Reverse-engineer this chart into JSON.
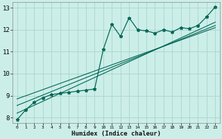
{
  "title": "",
  "xlabel": "Humidex (Indice chaleur)",
  "xlim": [
    -0.5,
    23.5
  ],
  "ylim": [
    7.75,
    13.25
  ],
  "yticks": [
    8,
    9,
    10,
    11,
    12,
    13
  ],
  "xticks": [
    0,
    1,
    2,
    3,
    4,
    5,
    6,
    7,
    8,
    9,
    10,
    11,
    12,
    13,
    14,
    15,
    16,
    17,
    18,
    19,
    20,
    21,
    22,
    23
  ],
  "bg_color": "#cceee8",
  "grid_color": "#aad8d0",
  "line_color": "#006655",
  "curve_x": [
    0,
    1,
    2,
    3,
    4,
    5,
    6,
    7,
    8,
    9,
    10,
    11,
    12,
    13,
    14,
    15,
    16,
    17,
    18,
    19,
    20,
    21,
    22,
    23
  ],
  "curve_y": [
    7.9,
    8.35,
    8.7,
    8.9,
    9.05,
    9.1,
    9.15,
    9.2,
    9.25,
    9.3,
    11.1,
    12.25,
    11.7,
    12.55,
    12.0,
    11.95,
    11.85,
    12.0,
    11.9,
    12.1,
    12.05,
    12.2,
    12.6,
    13.05
  ],
  "line1_x": [
    0,
    23
  ],
  "line1_y": [
    8.2,
    12.35
  ],
  "line2_x": [
    0,
    23
  ],
  "line2_y": [
    8.55,
    12.2
  ],
  "line3_x": [
    0,
    23
  ],
  "line3_y": [
    8.85,
    12.1
  ]
}
